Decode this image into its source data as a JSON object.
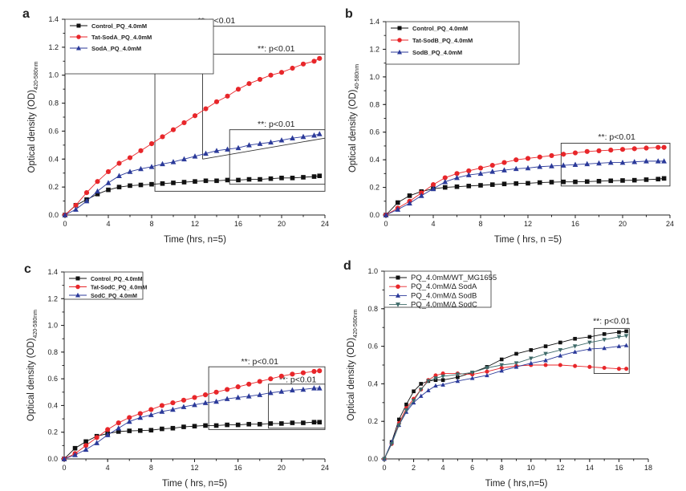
{
  "chart_data": [
    {
      "panel": "a",
      "type": "line",
      "xlabel": "Time (hrs, n=5)",
      "ylabel": "Optical density (OD)",
      "ylabel_sub": "420-580nm",
      "xlim": [
        0,
        24
      ],
      "ylim": [
        0,
        1.4
      ],
      "xticks": [
        "0",
        "4",
        "8",
        "12",
        "16",
        "20",
        "24"
      ],
      "yticks": [
        "0.0",
        "0.2",
        "0.4",
        "0.6",
        "0.8",
        "1.0",
        "1.2",
        "1.4"
      ],
      "legend_position": "top-left",
      "annotations": [
        "**: p<0.01",
        "**: p<0.01",
        "**: p<0.01"
      ],
      "x": [
        0,
        1,
        2,
        3,
        4,
        5,
        6,
        7,
        8,
        9,
        10,
        11,
        12,
        13,
        14,
        15,
        16,
        17,
        18,
        19,
        20,
        21,
        22,
        23,
        23.5
      ],
      "series": [
        {
          "name": "Control_PQ_4.0mM",
          "color": "#111111",
          "marker": "square",
          "values": [
            0,
            0.07,
            0.11,
            0.15,
            0.18,
            0.2,
            0.21,
            0.215,
            0.22,
            0.225,
            0.23,
            0.235,
            0.24,
            0.245,
            0.245,
            0.25,
            0.25,
            0.255,
            0.255,
            0.26,
            0.265,
            0.265,
            0.27,
            0.275,
            0.28
          ]
        },
        {
          "name": "Tat-SodA_PQ_4.0mM",
          "color": "#e8262a",
          "marker": "circle",
          "values": [
            0,
            0.07,
            0.16,
            0.24,
            0.31,
            0.37,
            0.41,
            0.46,
            0.51,
            0.56,
            0.61,
            0.66,
            0.71,
            0.76,
            0.81,
            0.85,
            0.9,
            0.94,
            0.97,
            1.0,
            1.02,
            1.05,
            1.08,
            1.1,
            1.12
          ]
        },
        {
          "name": "SodA_PQ_4.0mM",
          "color": "#2b3a9a",
          "marker": "triangle",
          "values": [
            0,
            0.04,
            0.1,
            0.17,
            0.23,
            0.28,
            0.31,
            0.33,
            0.345,
            0.365,
            0.38,
            0.4,
            0.42,
            0.44,
            0.46,
            0.47,
            0.48,
            0.5,
            0.51,
            0.52,
            0.535,
            0.55,
            0.56,
            0.57,
            0.58
          ]
        }
      ]
    },
    {
      "panel": "b",
      "type": "line",
      "xlabel": "Time ( hrs, n =5)",
      "ylabel": "Optical density (OD)",
      "ylabel_sub": "40-580nm",
      "xlim": [
        0,
        24
      ],
      "ylim": [
        0,
        1.4
      ],
      "xticks": [
        "0",
        "4",
        "8",
        "12",
        "16",
        "20",
        "24"
      ],
      "yticks": [
        "0.0",
        "0.2",
        "0.4",
        "0.6",
        "0.8",
        "1.0",
        "1.2",
        "1.4"
      ],
      "legend_position": "top-left",
      "annotations": [
        "**: p<0.01"
      ],
      "x": [
        0,
        1,
        2,
        3,
        4,
        5,
        6,
        7,
        8,
        9,
        10,
        11,
        12,
        13,
        14,
        15,
        16,
        17,
        18,
        19,
        20,
        21,
        22,
        23,
        23.5
      ],
      "series": [
        {
          "name": "Control_PQ_4.0mM",
          "color": "#111111",
          "marker": "square",
          "values": [
            0,
            0.09,
            0.14,
            0.17,
            0.19,
            0.2,
            0.205,
            0.21,
            0.215,
            0.22,
            0.225,
            0.228,
            0.23,
            0.235,
            0.238,
            0.24,
            0.24,
            0.242,
            0.245,
            0.248,
            0.25,
            0.252,
            0.256,
            0.26,
            0.265
          ]
        },
        {
          "name": "Tat-SodB_PQ_4.0mM",
          "color": "#e8262a",
          "marker": "circle",
          "values": [
            0,
            0.05,
            0.1,
            0.16,
            0.22,
            0.27,
            0.3,
            0.32,
            0.34,
            0.36,
            0.38,
            0.4,
            0.41,
            0.42,
            0.43,
            0.44,
            0.45,
            0.46,
            0.465,
            0.47,
            0.475,
            0.48,
            0.485,
            0.49,
            0.49
          ]
        },
        {
          "name": "SodB_PQ_4.0mM",
          "color": "#2b3a9a",
          "marker": "triangle",
          "values": [
            0,
            0.04,
            0.085,
            0.14,
            0.19,
            0.24,
            0.27,
            0.29,
            0.3,
            0.315,
            0.325,
            0.335,
            0.34,
            0.35,
            0.355,
            0.36,
            0.365,
            0.37,
            0.375,
            0.38,
            0.38,
            0.385,
            0.39,
            0.39,
            0.39
          ]
        }
      ]
    },
    {
      "panel": "c",
      "type": "line",
      "xlabel": "Time ( hrs, n=5)",
      "ylabel": "Optical density (OD)",
      "ylabel_sub": "420-580nm",
      "xlim": [
        0,
        24
      ],
      "ylim": [
        0,
        1.4
      ],
      "xticks": [
        "0",
        "4",
        "8",
        "12",
        "16",
        "20",
        "24"
      ],
      "yticks": [
        "0.0",
        "0.2",
        "0.4",
        "0.6",
        "0.8",
        "1.0",
        "1.2",
        "1.4"
      ],
      "legend_position": "top-left",
      "annotations": [
        "**: p<0.01",
        "**: p<0.01"
      ],
      "x": [
        0,
        1,
        2,
        3,
        4,
        5,
        6,
        7,
        8,
        9,
        10,
        11,
        12,
        13,
        14,
        15,
        16,
        17,
        18,
        19,
        20,
        21,
        22,
        23,
        23.5
      ],
      "series": [
        {
          "name": "Control_PQ_4.0mM",
          "color": "#111111",
          "marker": "square",
          "values": [
            0,
            0.08,
            0.13,
            0.17,
            0.19,
            0.205,
            0.21,
            0.212,
            0.215,
            0.225,
            0.23,
            0.24,
            0.245,
            0.25,
            0.25,
            0.255,
            0.255,
            0.26,
            0.26,
            0.265,
            0.265,
            0.27,
            0.27,
            0.275,
            0.275
          ]
        },
        {
          "name": "Tat-SodC_PQ_4.0mM",
          "color": "#e8262a",
          "marker": "circle",
          "values": [
            0,
            0.04,
            0.1,
            0.16,
            0.22,
            0.27,
            0.31,
            0.34,
            0.37,
            0.4,
            0.42,
            0.44,
            0.46,
            0.48,
            0.5,
            0.52,
            0.54,
            0.56,
            0.58,
            0.6,
            0.62,
            0.635,
            0.645,
            0.655,
            0.66
          ]
        },
        {
          "name": "SodC_PQ_4.0mM",
          "color": "#2b3a9a",
          "marker": "triangle",
          "values": [
            0,
            0.03,
            0.07,
            0.12,
            0.18,
            0.23,
            0.28,
            0.31,
            0.33,
            0.355,
            0.37,
            0.39,
            0.405,
            0.42,
            0.43,
            0.45,
            0.46,
            0.47,
            0.48,
            0.495,
            0.505,
            0.515,
            0.52,
            0.53,
            0.53
          ]
        }
      ]
    },
    {
      "panel": "d",
      "type": "line",
      "xlabel": "Time ( hrs,n=5)",
      "ylabel": "Optical density (OD)",
      "ylabel_sub": "420-580nm",
      "xlim": [
        0,
        18
      ],
      "ylim": [
        0,
        1.0
      ],
      "xticks": [
        "0",
        "2",
        "4",
        "6",
        "8",
        "10",
        "12",
        "14",
        "16",
        "18"
      ],
      "yticks": [
        "0.0",
        "0.2",
        "0.4",
        "0.6",
        "0.8",
        "1.0"
      ],
      "legend_position": "top-left",
      "annotations": [
        "**: p<0.01"
      ],
      "x": [
        0,
        0.5,
        1,
        1.5,
        2,
        2.5,
        3,
        3.5,
        4,
        5,
        6,
        7,
        8,
        9,
        10,
        11,
        12,
        13,
        14,
        15,
        16,
        16.5
      ],
      "series": [
        {
          "name": "PQ_4.0mM/WT_MG1655",
          "color": "#111111",
          "marker": "square",
          "values": [
            0,
            0.09,
            0.21,
            0.29,
            0.36,
            0.4,
            0.415,
            0.42,
            0.42,
            0.435,
            0.46,
            0.49,
            0.53,
            0.56,
            0.58,
            0.6,
            0.62,
            0.64,
            0.65,
            0.665,
            0.675,
            0.68
          ]
        },
        {
          "name": "PQ_4.0mM/Δ SodA",
          "color": "#e8262a",
          "marker": "circle",
          "values": [
            0,
            0.08,
            0.19,
            0.27,
            0.32,
            0.37,
            0.42,
            0.445,
            0.455,
            0.455,
            0.45,
            0.465,
            0.485,
            0.495,
            0.5,
            0.5,
            0.5,
            0.495,
            0.49,
            0.485,
            0.48,
            0.48
          ]
        },
        {
          "name": "PQ_4.0mM/Δ SodB",
          "color": "#2b3a9a",
          "marker": "triangle",
          "values": [
            0,
            0.09,
            0.18,
            0.25,
            0.3,
            0.335,
            0.365,
            0.39,
            0.395,
            0.415,
            0.43,
            0.445,
            0.47,
            0.49,
            0.51,
            0.525,
            0.55,
            0.57,
            0.585,
            0.59,
            0.6,
            0.605
          ]
        },
        {
          "name": "PQ_4.0mM/Δ SodC",
          "color": "#3f6b6a",
          "marker": "triangle-down",
          "values": [
            0,
            0.08,
            0.18,
            0.26,
            0.31,
            0.37,
            0.415,
            0.43,
            0.44,
            0.45,
            0.46,
            0.485,
            0.5,
            0.51,
            0.535,
            0.56,
            0.58,
            0.6,
            0.62,
            0.635,
            0.65,
            0.655
          ]
        }
      ]
    }
  ]
}
